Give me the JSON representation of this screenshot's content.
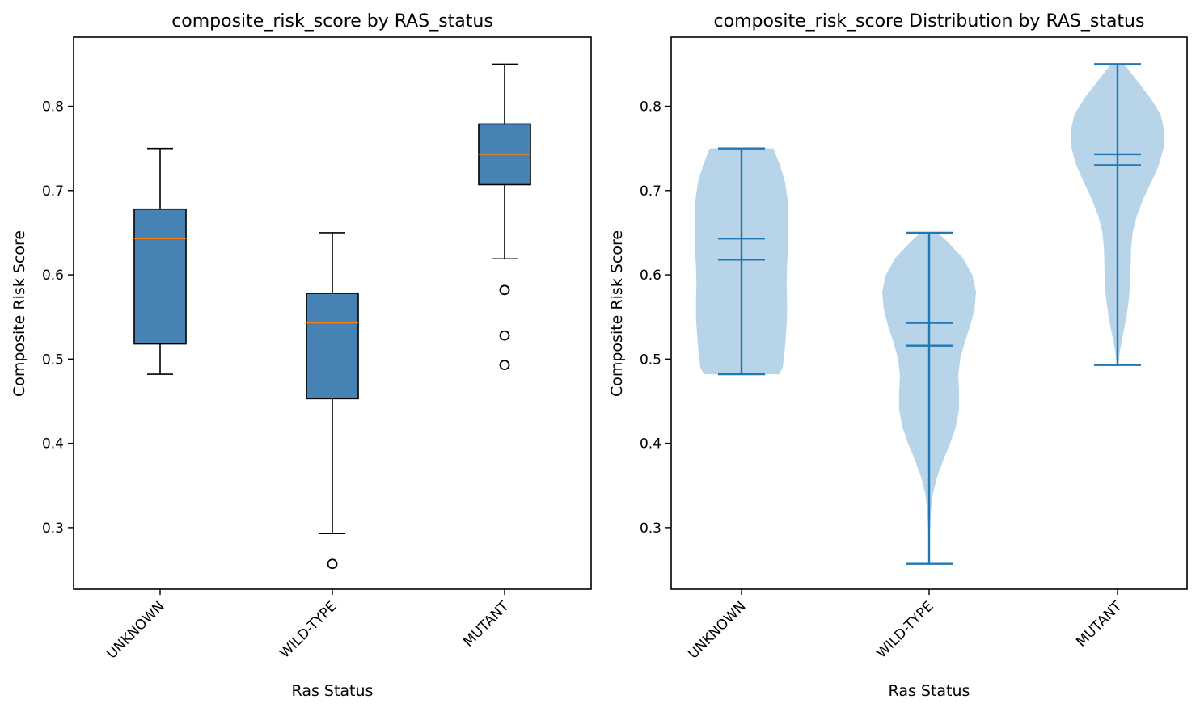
{
  "chart_data": [
    {
      "type": "box",
      "title": "composite_risk_score by RAS_status",
      "xlabel": "Ras Status",
      "ylabel": "Composite Risk Score",
      "ylim": [
        0.227,
        0.882
      ],
      "yticks": [
        "0.3",
        "0.4",
        "0.5",
        "0.6",
        "0.7",
        "0.8"
      ],
      "categories": [
        "UNKNOWN",
        "WILD-TYPE",
        "MUTANT"
      ],
      "boxes": [
        {
          "whislo": 0.482,
          "q1": 0.518,
          "med": 0.643,
          "q3": 0.678,
          "whishi": 0.75,
          "fliers": []
        },
        {
          "whislo": 0.293,
          "q1": 0.453,
          "med": 0.543,
          "q3": 0.578,
          "whishi": 0.65,
          "fliers": [
            0.257
          ]
        },
        {
          "whislo": 0.619,
          "q1": 0.707,
          "med": 0.743,
          "q3": 0.779,
          "whishi": 0.85,
          "fliers": [
            0.582,
            0.528,
            0.493
          ]
        }
      ],
      "colors": {
        "box_fill": "#4682b4",
        "median": "#ff7f0e",
        "line": "#000000"
      }
    },
    {
      "type": "violin",
      "title": "composite_risk_score Distribution by RAS_status",
      "xlabel": "Ras Status",
      "ylabel": "Composite Risk Score",
      "ylim": [
        0.227,
        0.882
      ],
      "yticks": [
        "0.3",
        "0.4",
        "0.5",
        "0.6",
        "0.7",
        "0.8"
      ],
      "categories": [
        "UNKNOWN",
        "WILD-TYPE",
        "MUTANT"
      ],
      "violins": [
        {
          "min": 0.482,
          "max": 0.75,
          "mean": 0.618,
          "median": 0.643,
          "density": [
            [
              0.482,
              0.8
            ],
            [
              0.49,
              0.88
            ],
            [
              0.51,
              0.92
            ],
            [
              0.53,
              0.95
            ],
            [
              0.55,
              0.97
            ],
            [
              0.57,
              0.97
            ],
            [
              0.59,
              0.96
            ],
            [
              0.61,
              0.97
            ],
            [
              0.63,
              0.99
            ],
            [
              0.65,
              1.0
            ],
            [
              0.67,
              1.0
            ],
            [
              0.69,
              0.98
            ],
            [
              0.71,
              0.93
            ],
            [
              0.73,
              0.82
            ],
            [
              0.75,
              0.68
            ]
          ]
        },
        {
          "min": 0.257,
          "max": 0.65,
          "mean": 0.516,
          "median": 0.543,
          "density": [
            [
              0.257,
              0.0
            ],
            [
              0.28,
              0.01
            ],
            [
              0.3,
              0.02
            ],
            [
              0.32,
              0.04
            ],
            [
              0.34,
              0.08
            ],
            [
              0.36,
              0.17
            ],
            [
              0.38,
              0.3
            ],
            [
              0.4,
              0.45
            ],
            [
              0.42,
              0.57
            ],
            [
              0.44,
              0.64
            ],
            [
              0.46,
              0.64
            ],
            [
              0.48,
              0.62
            ],
            [
              0.5,
              0.66
            ],
            [
              0.52,
              0.76
            ],
            [
              0.54,
              0.88
            ],
            [
              0.56,
              0.97
            ],
            [
              0.58,
              1.0
            ],
            [
              0.6,
              0.92
            ],
            [
              0.62,
              0.72
            ],
            [
              0.64,
              0.38
            ],
            [
              0.65,
              0.18
            ]
          ]
        },
        {
          "min": 0.493,
          "max": 0.85,
          "mean": 0.73,
          "median": 0.743,
          "density": [
            [
              0.493,
              0.02
            ],
            [
              0.51,
              0.05
            ],
            [
              0.53,
              0.12
            ],
            [
              0.55,
              0.19
            ],
            [
              0.57,
              0.24
            ],
            [
              0.59,
              0.27
            ],
            [
              0.61,
              0.28
            ],
            [
              0.63,
              0.29
            ],
            [
              0.65,
              0.32
            ],
            [
              0.67,
              0.41
            ],
            [
              0.69,
              0.55
            ],
            [
              0.71,
              0.72
            ],
            [
              0.73,
              0.88
            ],
            [
              0.75,
              0.98
            ],
            [
              0.77,
              1.0
            ],
            [
              0.79,
              0.92
            ],
            [
              0.81,
              0.7
            ],
            [
              0.83,
              0.42
            ],
            [
              0.85,
              0.14
            ]
          ]
        }
      ],
      "colors": {
        "body": "#b7d4e8",
        "line": "#1f77b4"
      }
    }
  ]
}
